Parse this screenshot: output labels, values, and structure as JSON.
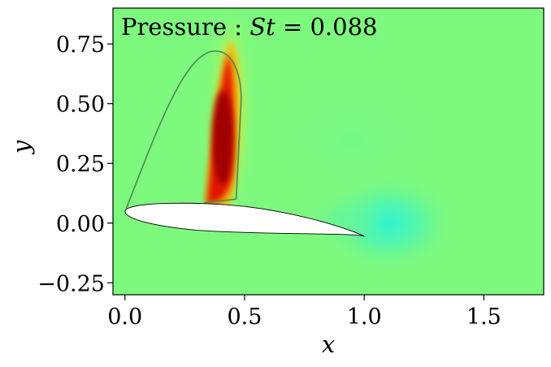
{
  "chart_data": {
    "type": "heatmap",
    "title": "Pressure : St = 0.088",
    "title_parts": {
      "label": "Pressure : ",
      "var": "St",
      "rest": " = 0.088"
    },
    "xlabel": "x",
    "ylabel": "y",
    "xlim": [
      -0.05,
      1.75
    ],
    "ylim": [
      -0.3,
      0.9
    ],
    "xticks": [
      0.0,
      0.5,
      1.0,
      1.5
    ],
    "xtick_labels": [
      "0.0",
      "0.5",
      "1.0",
      "1.5"
    ],
    "yticks": [
      -0.25,
      0.0,
      0.25,
      0.5,
      0.75
    ],
    "ytick_labels": [
      "−0.25",
      "0.00",
      "0.25",
      "0.50",
      "0.75"
    ],
    "grid": false,
    "colormap": "jet",
    "colors": {
      "background_field": "#7df97e",
      "high_pressure": "#a00000",
      "low_pressure": "#2ff4d2",
      "airfoil_fill": "#ffffff",
      "contour_line": "#4d8a50"
    },
    "features": {
      "high_pressure_band": {
        "x": 0.45,
        "y_from": 0.07,
        "y_to": 0.85
      },
      "low_pressure_center": {
        "x": 1.1,
        "y": 0.0
      },
      "airfoil": {
        "leading_edge": [
          0.0,
          0.05
        ],
        "trailing_edge": [
          1.0,
          -0.055
        ]
      },
      "shed_vortex_contour": {
        "top": [
          0.38,
          0.72
        ]
      }
    }
  }
}
